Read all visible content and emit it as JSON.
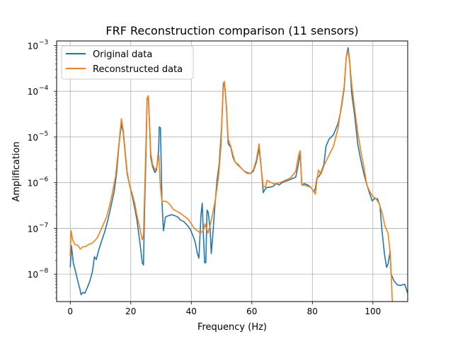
{
  "chart_data": {
    "type": "line",
    "title": "FRF Reconstruction comparison (11 sensors)",
    "xlabel": "Frequency (Hz)",
    "ylabel": "Amplification",
    "xlim": [
      -4.5,
      111.5
    ],
    "ylim_log10": [
      -8.6,
      -2.9
    ],
    "yscale": "log",
    "grid": true,
    "legend_position": "top-left",
    "x_ticks": [
      0,
      20,
      40,
      60,
      80,
      100
    ],
    "x_tick_labels": [
      "0",
      "20",
      "40",
      "60",
      "80",
      "100"
    ],
    "y_ticks_log10": [
      -8,
      -7,
      -6,
      -5,
      -4,
      -3
    ],
    "y_tick_labels": [
      "10",
      "10",
      "10",
      "10",
      "10",
      "10"
    ],
    "y_tick_exponents": [
      "−8",
      "−7",
      "−6",
      "−5",
      "−4",
      "−3"
    ],
    "series": [
      {
        "name": "Original data",
        "color": "#1f77b4",
        "points": [
          [
            0,
            -7.85
          ],
          [
            0.4,
            -7.38
          ],
          [
            1,
            -7.75
          ],
          [
            1.8,
            -7.95
          ],
          [
            2.5,
            -8.15
          ],
          [
            3.2,
            -8.33
          ],
          [
            3.6,
            -8.45
          ],
          [
            4.2,
            -8.4
          ],
          [
            4.8,
            -8.42
          ],
          [
            5.6,
            -8.3
          ],
          [
            6.5,
            -8.15
          ],
          [
            7.3,
            -7.95
          ],
          [
            8,
            -7.62
          ],
          [
            8.6,
            -7.68
          ],
          [
            9.5,
            -7.45
          ],
          [
            10.5,
            -7.25
          ],
          [
            11.5,
            -7.05
          ],
          [
            12.5,
            -6.8
          ],
          [
            13.5,
            -6.5
          ],
          [
            14.5,
            -6.2
          ],
          [
            15.3,
            -5.8
          ],
          [
            16.2,
            -5.1
          ],
          [
            16.9,
            -4.72
          ],
          [
            17.5,
            -4.9
          ],
          [
            18.2,
            -5.4
          ],
          [
            18.8,
            -5.8
          ],
          [
            19.6,
            -6.05
          ],
          [
            20.5,
            -6.3
          ],
          [
            21.3,
            -6.55
          ],
          [
            22,
            -6.8
          ],
          [
            23,
            -7.3
          ],
          [
            23.8,
            -7.75
          ],
          [
            24.2,
            -7.8
          ],
          [
            24.6,
            -6.5
          ],
          [
            25,
            -5.5
          ],
          [
            25.4,
            -4.2
          ],
          [
            25.8,
            -4.15
          ],
          [
            26.2,
            -4.75
          ],
          [
            26.6,
            -5.45
          ],
          [
            27.2,
            -5.65
          ],
          [
            28,
            -5.78
          ],
          [
            28.5,
            -5.72
          ],
          [
            29.2,
            -5.3
          ],
          [
            29.4,
            -4.78
          ],
          [
            29.8,
            -4.8
          ],
          [
            30.3,
            -6.4
          ],
          [
            30.8,
            -7.05
          ],
          [
            31.5,
            -6.75
          ],
          [
            32.5,
            -6.72
          ],
          [
            33.5,
            -6.7
          ],
          [
            34.5,
            -6.72
          ],
          [
            35.5,
            -6.75
          ],
          [
            36.5,
            -6.82
          ],
          [
            37.5,
            -6.85
          ],
          [
            38.5,
            -6.92
          ],
          [
            39.5,
            -7.0
          ],
          [
            40.5,
            -7.15
          ],
          [
            41.3,
            -7.3
          ],
          [
            42,
            -7.55
          ],
          [
            42.5,
            -7.65
          ],
          [
            43.2,
            -6.7
          ],
          [
            43.6,
            -6.45
          ],
          [
            44,
            -7.15
          ],
          [
            44.4,
            -7.75
          ],
          [
            44.8,
            -7.75
          ],
          [
            45.2,
            -6.6
          ],
          [
            45.6,
            -6.65
          ],
          [
            46.2,
            -7.0
          ],
          [
            46.6,
            -7.55
          ],
          [
            47.2,
            -7.05
          ],
          [
            47.8,
            -6.5
          ],
          [
            48.5,
            -5.95
          ],
          [
            49.2,
            -5.6
          ],
          [
            50,
            -4.8
          ],
          [
            50.6,
            -3.82
          ],
          [
            51,
            -3.82
          ],
          [
            51.6,
            -4.35
          ],
          [
            52.2,
            -5.15
          ],
          [
            53,
            -5.22
          ],
          [
            53.8,
            -5.45
          ],
          [
            54.5,
            -5.55
          ],
          [
            55.5,
            -5.62
          ],
          [
            56.5,
            -5.68
          ],
          [
            57.5,
            -5.75
          ],
          [
            58.5,
            -5.78
          ],
          [
            59.5,
            -5.8
          ],
          [
            60.5,
            -5.75
          ],
          [
            61.5,
            -5.55
          ],
          [
            62.4,
            -5.25
          ],
          [
            63.2,
            -5.75
          ],
          [
            63.8,
            -6.22
          ],
          [
            64.3,
            -6.15
          ],
          [
            65,
            -6.1
          ],
          [
            66,
            -6.1
          ],
          [
            67,
            -6.08
          ],
          [
            68,
            -6.02
          ],
          [
            69,
            -6.05
          ],
          [
            70,
            -6.0
          ],
          [
            71,
            -5.97
          ],
          [
            72,
            -5.95
          ],
          [
            73,
            -5.92
          ],
          [
            74.5,
            -5.88
          ],
          [
            75.5,
            -5.55
          ],
          [
            76,
            -5.35
          ],
          [
            76.5,
            -6.05
          ],
          [
            77.3,
            -6.02
          ],
          [
            78.5,
            -6.05
          ],
          [
            79.5,
            -6.1
          ],
          [
            80.5,
            -6.2
          ],
          [
            81,
            -6.12
          ],
          [
            81.5,
            -5.9
          ],
          [
            82.3,
            -5.85
          ],
          [
            83,
            -5.75
          ],
          [
            83.8,
            -5.6
          ],
          [
            84.5,
            -5.2
          ],
          [
            85.5,
            -5.05
          ],
          [
            87,
            -4.95
          ],
          [
            88.5,
            -4.7
          ],
          [
            89.5,
            -4.4
          ],
          [
            90.5,
            -3.95
          ],
          [
            91.2,
            -3.25
          ],
          [
            91.8,
            -3.05
          ],
          [
            92.3,
            -3.32
          ],
          [
            93,
            -4.05
          ],
          [
            94,
            -4.55
          ],
          [
            95,
            -5.15
          ],
          [
            96,
            -5.5
          ],
          [
            97,
            -5.8
          ],
          [
            98,
            -6.05
          ],
          [
            99,
            -6.25
          ],
          [
            99.8,
            -6.4
          ],
          [
            100.5,
            -6.35
          ],
          [
            101.5,
            -6.35
          ],
          [
            102.3,
            -6.5
          ],
          [
            103,
            -7.05
          ],
          [
            103.8,
            -7.55
          ],
          [
            104.5,
            -7.85
          ],
          [
            105,
            -7.78
          ],
          [
            105.7,
            -7.5
          ],
          [
            106,
            -8.0
          ],
          [
            107,
            -8.15
          ],
          [
            108,
            -8.23
          ],
          [
            109,
            -8.25
          ],
          [
            110.5,
            -8.22
          ],
          [
            111.5,
            -8.42
          ]
        ]
      },
      {
        "name": "Reconstructed data",
        "color": "#ff7f0e",
        "points": [
          [
            0,
            -7.6
          ],
          [
            0.3,
            -7.05
          ],
          [
            0.8,
            -7.25
          ],
          [
            1.5,
            -7.35
          ],
          [
            2.5,
            -7.37
          ],
          [
            3.3,
            -7.45
          ],
          [
            4.2,
            -7.4
          ],
          [
            5,
            -7.4
          ],
          [
            6,
            -7.35
          ],
          [
            7,
            -7.33
          ],
          [
            8,
            -7.28
          ],
          [
            9,
            -7.2
          ],
          [
            10,
            -7.05
          ],
          [
            11,
            -6.9
          ],
          [
            12,
            -6.75
          ],
          [
            13,
            -6.5
          ],
          [
            14,
            -6.2
          ],
          [
            15,
            -5.85
          ],
          [
            16,
            -5.2
          ],
          [
            16.9,
            -4.6
          ],
          [
            17.5,
            -4.85
          ],
          [
            18.2,
            -5.35
          ],
          [
            18.8,
            -5.75
          ],
          [
            19.6,
            -6.05
          ],
          [
            20.5,
            -6.25
          ],
          [
            21.3,
            -6.45
          ],
          [
            22,
            -6.7
          ],
          [
            23,
            -7.0
          ],
          [
            23.8,
            -7.25
          ],
          [
            24.2,
            -7.15
          ],
          [
            24.6,
            -6.2
          ],
          [
            25,
            -5.2
          ],
          [
            25.4,
            -4.15
          ],
          [
            25.8,
            -4.1
          ],
          [
            26.2,
            -4.7
          ],
          [
            26.6,
            -5.35
          ],
          [
            27.2,
            -5.6
          ],
          [
            28,
            -5.72
          ],
          [
            28.5,
            -5.68
          ],
          [
            29.3,
            -5.4
          ],
          [
            29.7,
            -6.0
          ],
          [
            30.3,
            -6.42
          ],
          [
            31,
            -6.4
          ],
          [
            32,
            -6.42
          ],
          [
            33,
            -6.48
          ],
          [
            34,
            -6.58
          ],
          [
            35,
            -6.62
          ],
          [
            36,
            -6.65
          ],
          [
            37,
            -6.7
          ],
          [
            38,
            -6.75
          ],
          [
            39,
            -6.8
          ],
          [
            40,
            -6.9
          ],
          [
            41,
            -7.0
          ],
          [
            42,
            -7.05
          ],
          [
            43,
            -7.1
          ],
          [
            44,
            -7.05
          ],
          [
            44.5,
            -6.9
          ],
          [
            45,
            -7.0
          ],
          [
            45.5,
            -7.1
          ],
          [
            46.2,
            -6.95
          ],
          [
            47,
            -6.7
          ],
          [
            48,
            -6.35
          ],
          [
            49,
            -5.85
          ],
          [
            49.8,
            -5.2
          ],
          [
            50.5,
            -4.0
          ],
          [
            50.9,
            -3.78
          ],
          [
            51.5,
            -4.2
          ],
          [
            52.2,
            -5.05
          ],
          [
            53,
            -5.2
          ],
          [
            53.8,
            -5.4
          ],
          [
            54.5,
            -5.55
          ],
          [
            55.5,
            -5.6
          ],
          [
            56.5,
            -5.68
          ],
          [
            57.5,
            -5.75
          ],
          [
            58.5,
            -5.8
          ],
          [
            59.5,
            -5.8
          ],
          [
            60.5,
            -5.72
          ],
          [
            61.5,
            -5.5
          ],
          [
            62.4,
            -5.15
          ],
          [
            63.2,
            -5.75
          ],
          [
            63.8,
            -6.08
          ],
          [
            64.5,
            -6.1
          ],
          [
            65,
            -5.95
          ],
          [
            66,
            -5.98
          ],
          [
            67,
            -6.02
          ],
          [
            68,
            -6.02
          ],
          [
            69,
            -6.0
          ],
          [
            70,
            -5.98
          ],
          [
            71,
            -5.95
          ],
          [
            72,
            -5.92
          ],
          [
            73,
            -5.88
          ],
          [
            74.5,
            -5.75
          ],
          [
            75.5,
            -5.38
          ],
          [
            76,
            -5.3
          ],
          [
            76.5,
            -6.05
          ],
          [
            77.3,
            -6.05
          ],
          [
            78.5,
            -6.08
          ],
          [
            79.5,
            -6.1
          ],
          [
            80.5,
            -6.2
          ],
          [
            81,
            -6.25
          ],
          [
            81.5,
            -5.95
          ],
          [
            82,
            -5.72
          ],
          [
            82.8,
            -5.82
          ],
          [
            84,
            -5.6
          ],
          [
            85.5,
            -5.4
          ],
          [
            87,
            -5.2
          ],
          [
            88.5,
            -4.8
          ],
          [
            89.5,
            -4.35
          ],
          [
            90.5,
            -3.9
          ],
          [
            91.2,
            -3.25
          ],
          [
            91.8,
            -3.12
          ],
          [
            92.3,
            -3.35
          ],
          [
            93,
            -3.85
          ],
          [
            94,
            -4.4
          ],
          [
            95,
            -4.9
          ],
          [
            96,
            -5.3
          ],
          [
            97,
            -5.65
          ],
          [
            98,
            -6.05
          ],
          [
            99,
            -6.2
          ],
          [
            100,
            -6.3
          ],
          [
            101,
            -6.35
          ],
          [
            102,
            -6.45
          ],
          [
            103,
            -6.65
          ],
          [
            104,
            -6.95
          ],
          [
            105,
            -7.1
          ],
          [
            105.5,
            -7.4
          ],
          [
            106,
            -7.9
          ],
          [
            106.6,
            -8.9
          ]
        ]
      }
    ]
  }
}
